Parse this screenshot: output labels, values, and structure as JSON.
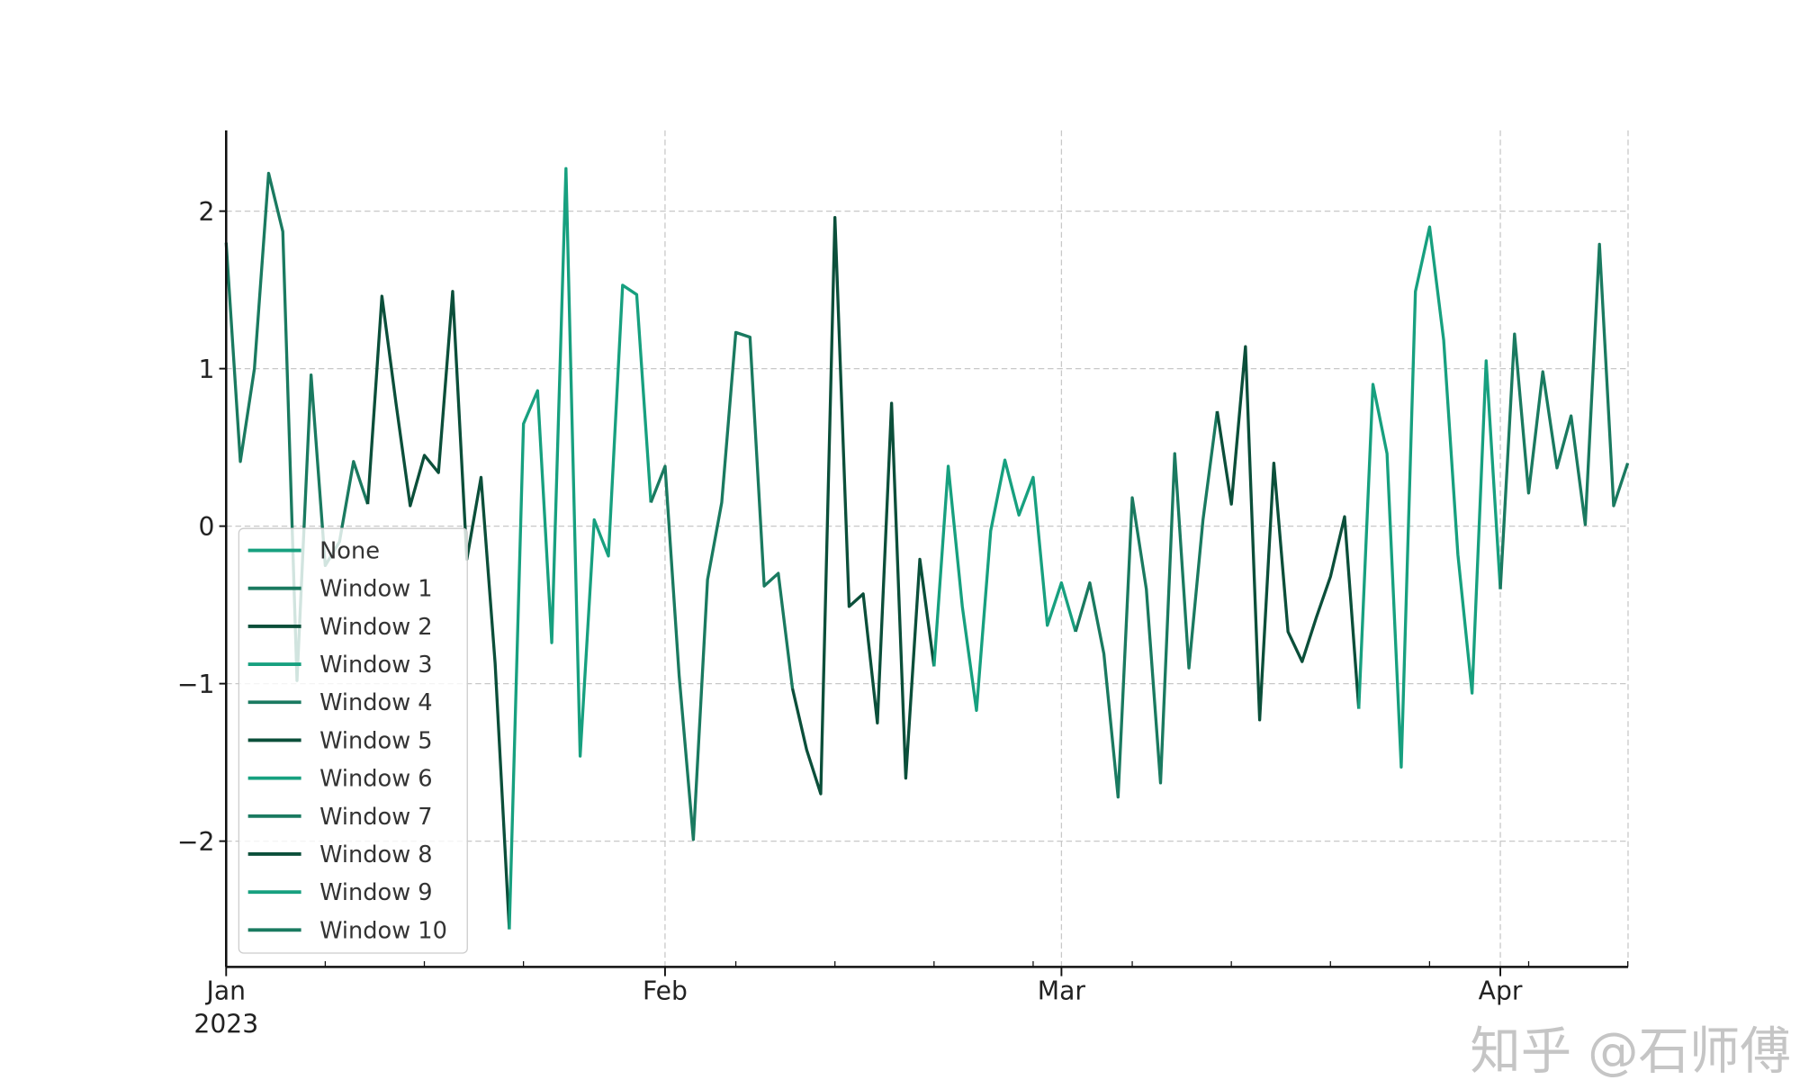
{
  "chart_data": {
    "type": "line",
    "title": "",
    "xlabel": "",
    "ylabel": "",
    "x_start": "2023-01-01",
    "x_frequency": "daily",
    "x_ticks": [
      {
        "label": "Jan",
        "sublabel": "2023",
        "day": 0
      },
      {
        "label": "Feb",
        "sublabel": "",
        "day": 31
      },
      {
        "label": "Mar",
        "sublabel": "",
        "day": 59
      },
      {
        "label": "Apr",
        "sublabel": "",
        "day": 90
      }
    ],
    "minor_tick_days": [
      7,
      14,
      21,
      36,
      43,
      50,
      57,
      64,
      71,
      78,
      85,
      92,
      99
    ],
    "y_ticks": [
      2,
      1,
      0,
      -1,
      -2
    ],
    "y_tick_labels": [
      "2",
      "1",
      "0",
      "−1",
      "−2"
    ],
    "ylim": [
      -2.8,
      2.51
    ],
    "xlim_days": [
      0,
      99
    ],
    "grid": true,
    "legend_placement": "lower-left",
    "colors": [
      "#17a07f",
      "#1a7a60",
      "#0b4f3a"
    ],
    "values": [
      1.8,
      0.41,
      1.0,
      2.24,
      1.87,
      -0.98,
      0.96,
      -0.25,
      -0.1,
      0.41,
      0.14,
      1.46,
      0.78,
      0.13,
      0.45,
      0.34,
      1.49,
      -0.21,
      0.31,
      -0.87,
      -2.56,
      0.65,
      0.86,
      -0.74,
      2.27,
      -1.46,
      0.04,
      -0.19,
      1.53,
      1.47,
      0.15,
      0.38,
      -0.95,
      -1.99,
      -0.34,
      0.15,
      1.23,
      1.2,
      -0.38,
      -0.3,
      -1.03,
      -1.42,
      -1.7,
      1.96,
      -0.51,
      -0.43,
      -1.25,
      0.78,
      -1.6,
      -0.21,
      -0.89,
      0.38,
      -0.51,
      -1.17,
      -0.03,
      0.42,
      0.07,
      0.31,
      -0.63,
      -0.36,
      -0.67,
      -0.36,
      -0.81,
      -1.72,
      0.18,
      -0.4,
      -1.63,
      0.46,
      -0.9,
      0.04,
      0.73,
      0.14,
      1.14,
      -1.23,
      0.4,
      -0.67,
      -0.86,
      -0.58,
      -0.32,
      0.06,
      -1.16,
      0.9,
      0.46,
      -1.53,
      1.49,
      1.9,
      1.18,
      -0.18,
      -1.06,
      1.05,
      -0.4,
      1.22,
      0.21,
      0.98,
      0.37,
      0.7,
      0.01,
      1.79,
      0.13,
      0.4
    ],
    "series": [
      {
        "name": "None",
        "color_index": 0,
        "start": 0,
        "end": 0
      },
      {
        "name": "Window 1",
        "color_index": 1,
        "start": 0,
        "end": 10
      },
      {
        "name": "Window 2",
        "color_index": 2,
        "start": 10,
        "end": 20
      },
      {
        "name": "Window 3",
        "color_index": 0,
        "start": 20,
        "end": 30
      },
      {
        "name": "Window 4",
        "color_index": 1,
        "start": 30,
        "end": 40
      },
      {
        "name": "Window 5",
        "color_index": 2,
        "start": 40,
        "end": 50
      },
      {
        "name": "Window 6",
        "color_index": 0,
        "start": 50,
        "end": 60
      },
      {
        "name": "Window 7",
        "color_index": 1,
        "start": 60,
        "end": 70
      },
      {
        "name": "Window 8",
        "color_index": 2,
        "start": 70,
        "end": 80
      },
      {
        "name": "Window 9",
        "color_index": 0,
        "start": 80,
        "end": 90
      },
      {
        "name": "Window 10",
        "color_index": 1,
        "start": 90,
        "end": 99
      }
    ]
  },
  "watermark": "知乎 @石师傅"
}
